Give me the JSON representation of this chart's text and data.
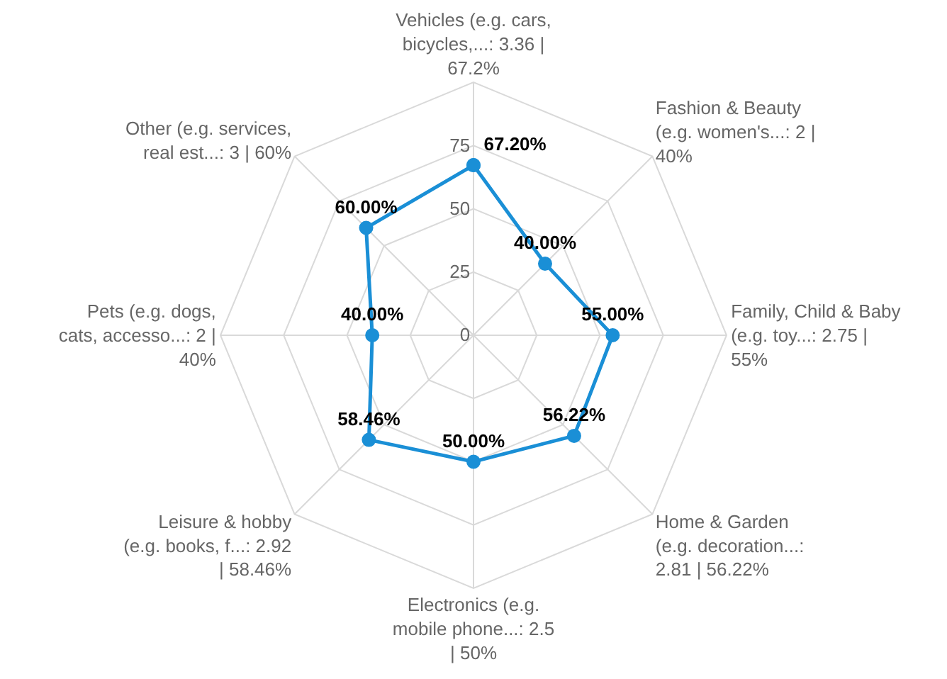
{
  "chart_data": {
    "type": "radar",
    "categories": [
      "Vehicles (e.g. cars,\nbicycles,...: 3.36 |\n67.2%",
      "Fashion & Beauty\n(e.g. women's...: 2 |\n40%",
      "Family, Child & Baby\n(e.g. toy...: 2.75 |\n55%",
      "Home & Garden\n(e.g. decoration...:\n2.81 | 56.22%",
      "Electronics (e.g.\nmobile phone...: 2.5\n| 50%",
      "Leisure & hobby\n(e.g. books, f...: 2.92\n| 58.46%",
      "Pets (e.g. dogs,\ncats, accesso...: 2 |\n40%",
      "Other (e.g. services,\nreal est...: 3 | 60%"
    ],
    "series": [
      {
        "color": "#1a8fd6",
        "values": [
          67.2,
          40,
          55,
          56.22,
          50,
          58.46,
          40,
          60
        ],
        "value_labels": [
          "67.20%",
          "40.00%",
          "55.00%",
          "56.22%",
          "50.00%",
          "58.46%",
          "40.00%",
          "60.00%"
        ]
      }
    ],
    "ylim": [
      0,
      100
    ],
    "yticks": [
      0,
      25,
      50,
      75
    ],
    "grid": true,
    "marker": "circle",
    "line_style": "solid"
  }
}
